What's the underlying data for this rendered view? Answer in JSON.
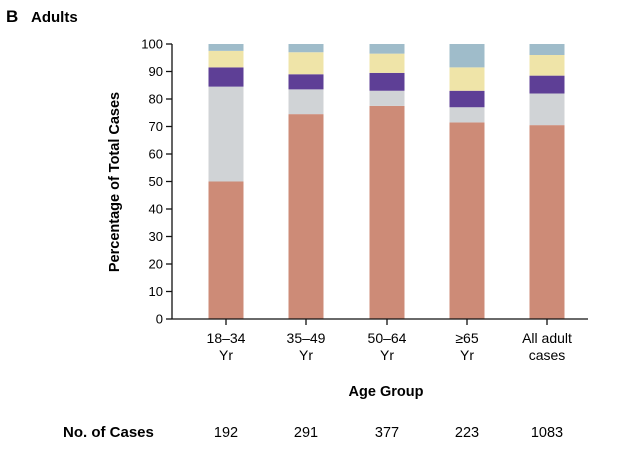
{
  "panel": {
    "letter": "B",
    "title": "Adults"
  },
  "chart_data": {
    "type": "bar",
    "stacked": true,
    "title": "",
    "xlabel": "Age Group",
    "ylabel": "Percentage of Total Cases",
    "ylim": [
      0,
      100
    ],
    "yticks": [
      0,
      10,
      20,
      30,
      40,
      50,
      60,
      70,
      80,
      90,
      100
    ],
    "grid": false,
    "categories": [
      {
        "line1": "18–34",
        "line2": "Yr"
      },
      {
        "line1": "35–49",
        "line2": "Yr"
      },
      {
        "line1": "50–64",
        "line2": "Yr"
      },
      {
        "line1": "≥65",
        "line2": "Yr"
      },
      {
        "line1": "All adult",
        "line2": "cases"
      }
    ],
    "series": [
      {
        "color": "#cd8b77",
        "values": [
          50.0,
          74.5,
          77.5,
          71.5,
          70.5
        ]
      },
      {
        "color": "#d0d3d6",
        "values": [
          34.5,
          9.0,
          5.5,
          5.5,
          11.5
        ]
      },
      {
        "color": "#5e3f96",
        "values": [
          7.0,
          5.5,
          6.5,
          6.0,
          6.5
        ]
      },
      {
        "color": "#efe4a8",
        "values": [
          6.0,
          8.0,
          7.0,
          8.5,
          7.5
        ]
      },
      {
        "color": "#9fbcca",
        "values": [
          2.5,
          3.0,
          3.5,
          8.5,
          4.0
        ]
      }
    ]
  },
  "cases": {
    "label": "No. of Cases",
    "values": [
      "192",
      "291",
      "377",
      "223",
      "1083"
    ]
  }
}
